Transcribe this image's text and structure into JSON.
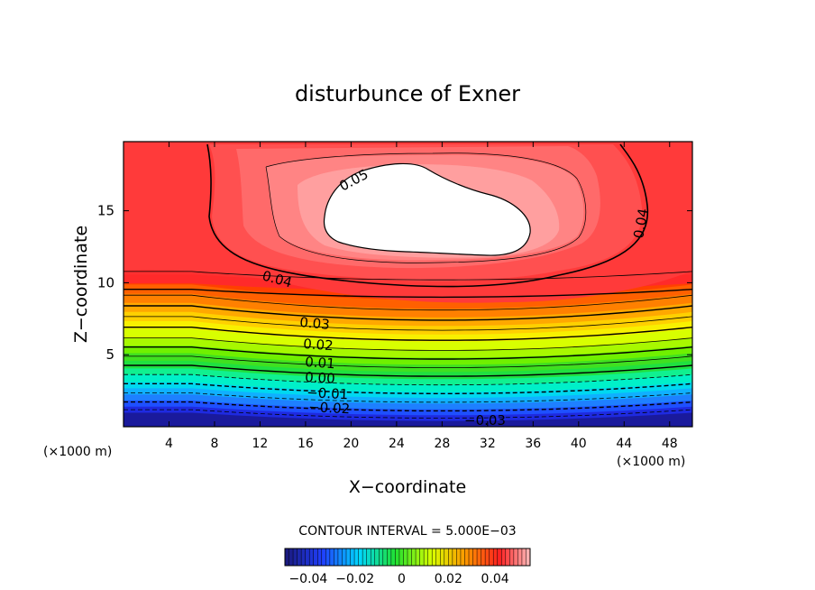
{
  "chart_data": {
    "type": "contour",
    "title": "disturbunce of Exner",
    "xlabel": "X−coordinate",
    "ylabel": "Z−coordinate",
    "x_unit_left": "(×1000 m)",
    "x_unit_right": "(×1000 m)",
    "xlim": [
      0,
      50
    ],
    "ylim": [
      0,
      19.8
    ],
    "x_ticks": [
      "4",
      "8",
      "12",
      "16",
      "20",
      "24",
      "28",
      "32",
      "36",
      "40",
      "44",
      "48"
    ],
    "y_ticks": [
      "5",
      "10",
      "15"
    ],
    "contour_interval_text": "CONTOUR INTERVAL = 5.000E−03",
    "contour_labels": [
      "0.05",
      "0.04",
      "0.04",
      "0.03",
      "0.02",
      "0.01",
      "0.00",
      "−0.01",
      "−0.02",
      "−0.03"
    ],
    "colorbar": {
      "min": -0.05,
      "max": 0.055,
      "tick_labels": [
        "−0.04",
        "−0.02",
        "0",
        "0.02",
        "0.04"
      ],
      "tick_values": [
        -0.04,
        -0.02,
        0,
        0.02,
        0.04
      ]
    },
    "levels": {
      "fill_heights": [
        0.4,
        0.8,
        1.2,
        1.6,
        2.0,
        2.4,
        2.9,
        3.3,
        3.8,
        4.3,
        4.8,
        5.3,
        5.9,
        6.4,
        7.0,
        7.6,
        8.2,
        8.8,
        9.4,
        10.0,
        10.6
      ],
      "contour_heights": [
        0.6,
        1.1,
        1.7,
        2.3,
        2.9,
        3.5,
        4.1,
        4.7,
        5.3,
        6.0,
        6.7,
        7.4,
        8.1,
        9.0,
        10.2
      ]
    },
    "colors": {
      "blue_dark": "#1a1aa0",
      "blue": "#1e40ff",
      "cyan": "#00e0f0",
      "green": "#20d020",
      "yellow": "#f0ff00",
      "orange": "#ff8c00",
      "red": "#ff1a1a",
      "pink": "#ff9a9a"
    }
  }
}
